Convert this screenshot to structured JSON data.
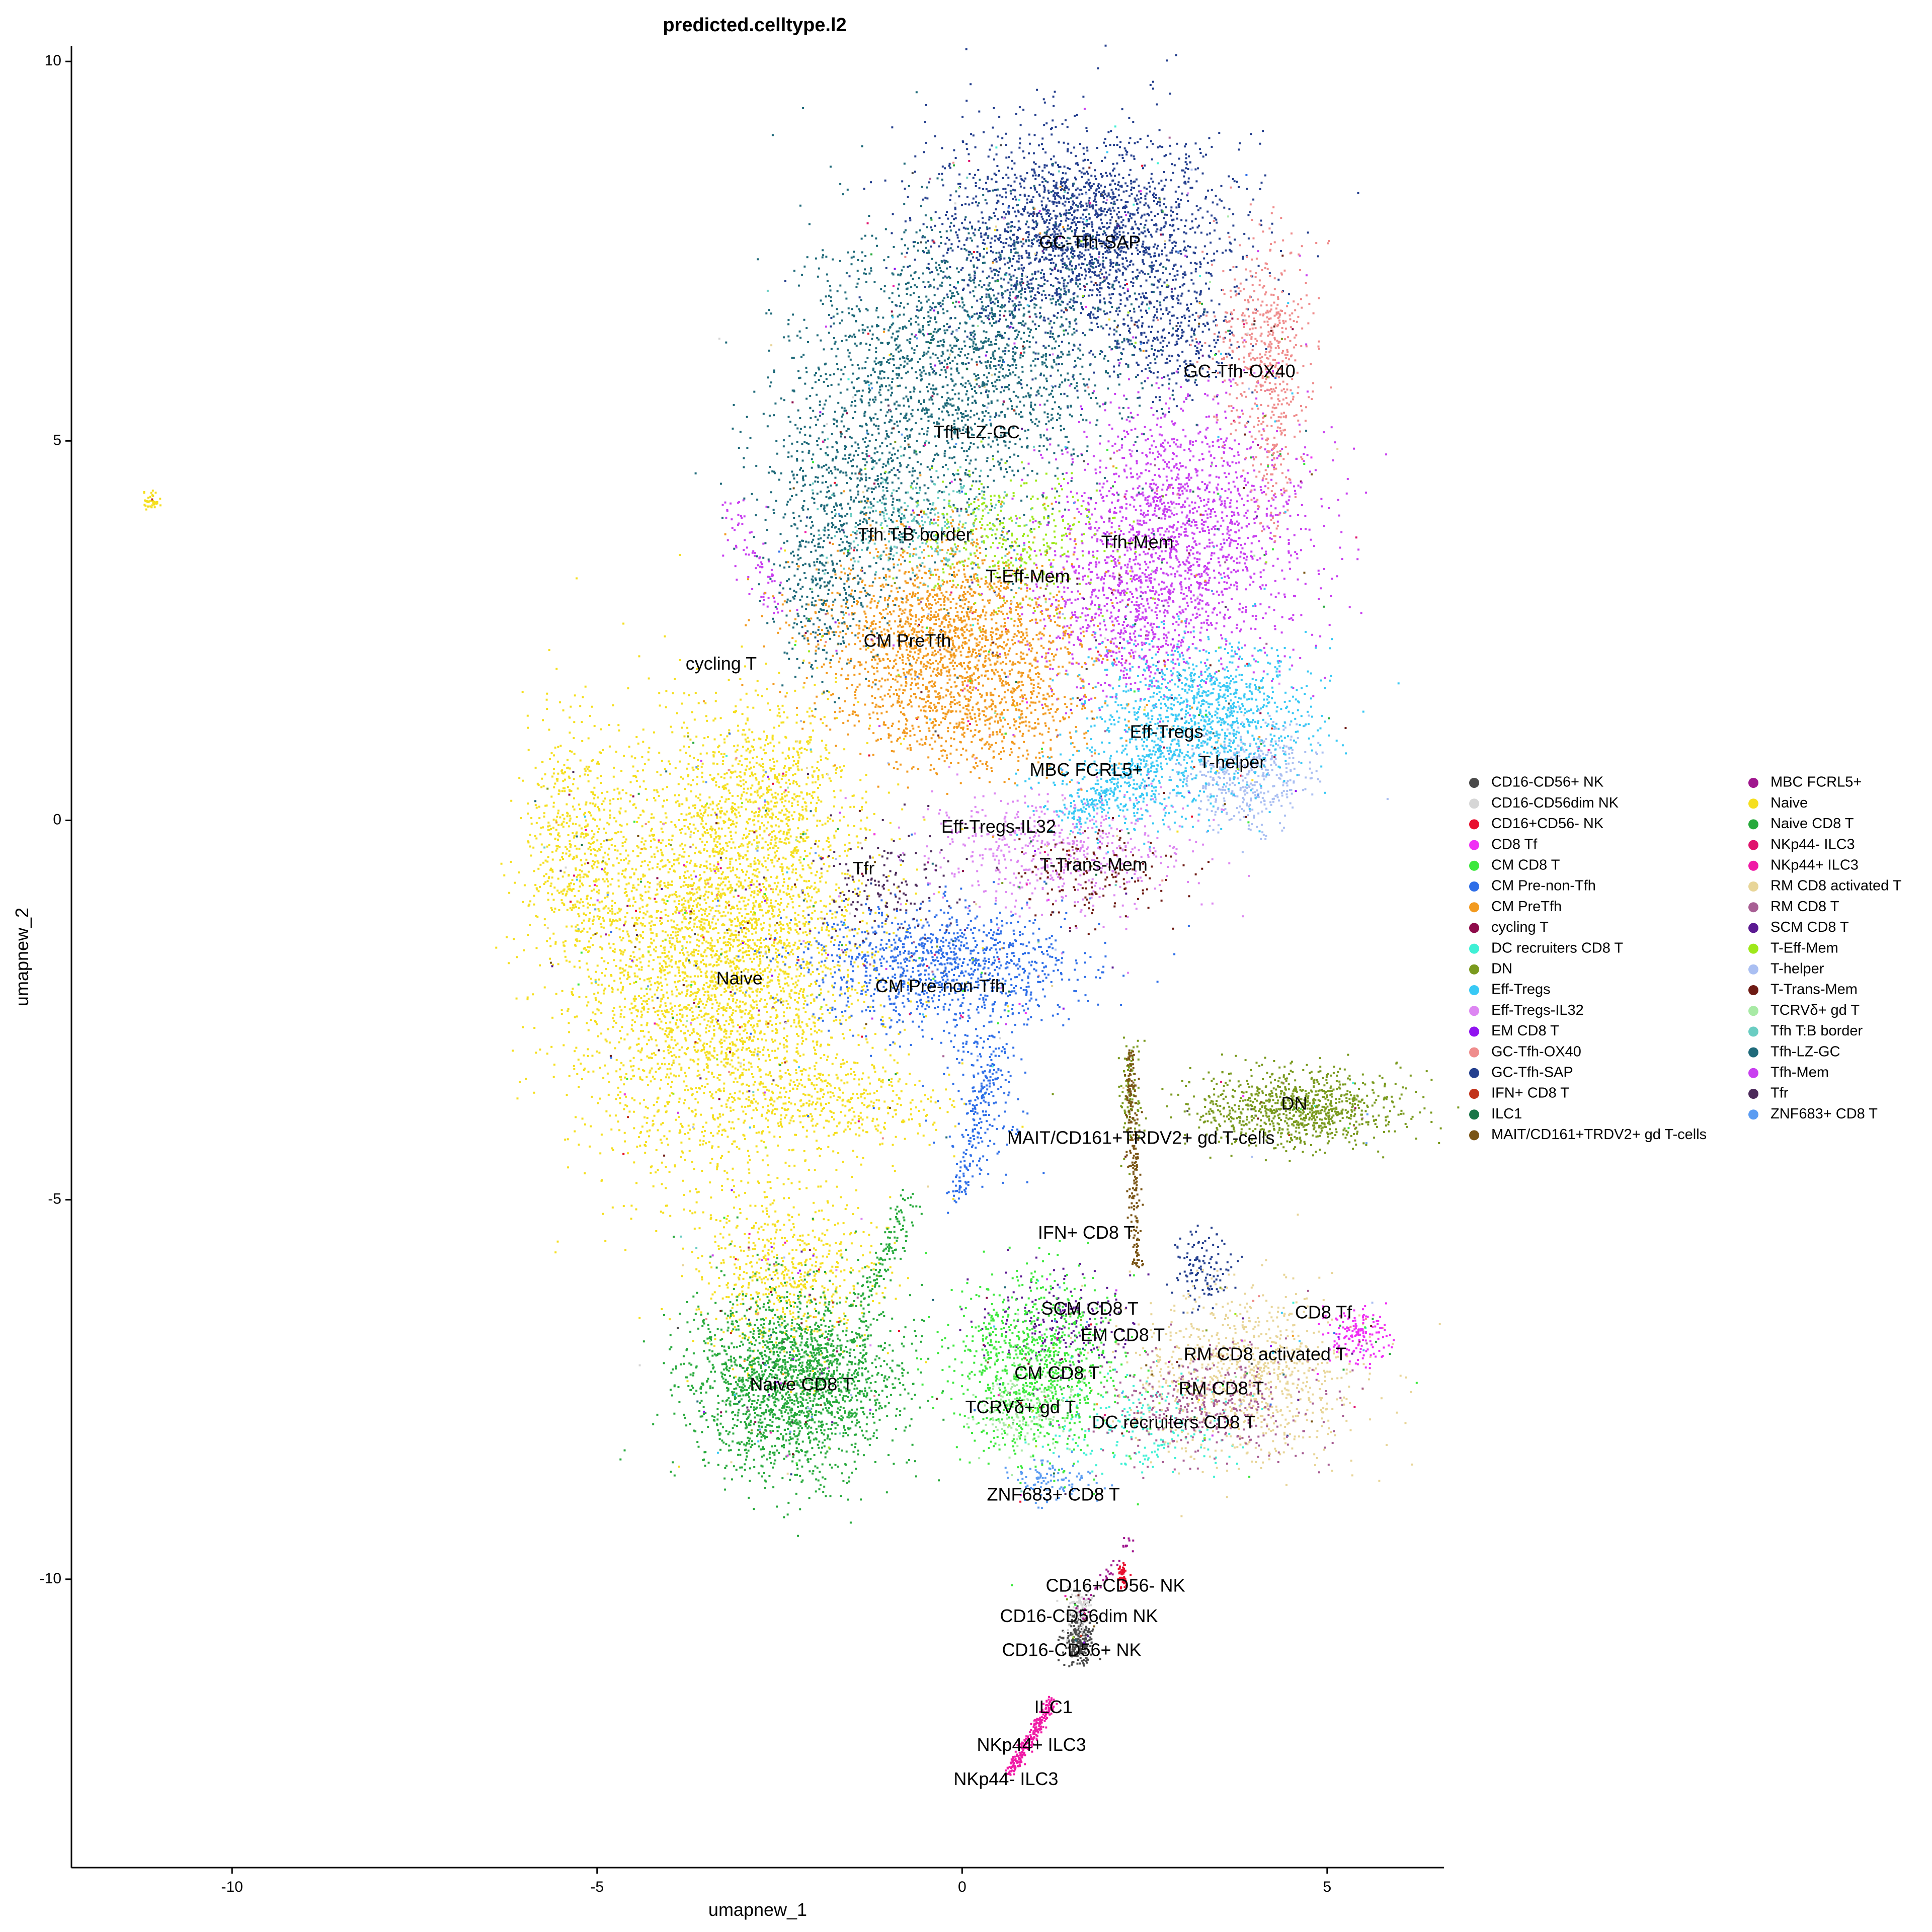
{
  "chart_data": {
    "type": "scatter",
    "title": "predicted.celltype.l2",
    "xlabel": "umapnew_1",
    "ylabel": "umapnew_2",
    "xlim": [
      -12.2,
      6.6
    ],
    "ylim": [
      -13.8,
      10.2
    ],
    "xticks": [
      -10,
      -5,
      0,
      5
    ],
    "yticks": [
      -10,
      -5,
      0,
      5,
      10
    ],
    "xtick_labels": [
      "-10",
      "-5",
      "0",
      "5"
    ],
    "ytick_labels": [
      "-10",
      "-5",
      "0",
      "5",
      "10"
    ],
    "legend": {
      "placement": "right",
      "entries": [
        {
          "label": "CD16-CD56+ NK",
          "color": "#4a4a4a"
        },
        {
          "label": "CD16-CD56dim NK",
          "color": "#d6d6d6"
        },
        {
          "label": "CD16+CD56- NK",
          "color": "#e8102f"
        },
        {
          "label": "CD8 Tf",
          "color": "#f02ef5"
        },
        {
          "label": "CM CD8 T",
          "color": "#3ce83c"
        },
        {
          "label": "CM Pre-non-Tfh",
          "color": "#2f6fe8"
        },
        {
          "label": "CM PreTfh",
          "color": "#f29a1f"
        },
        {
          "label": "cycling T",
          "color": "#8e0b4a"
        },
        {
          "label": "DC recruiters CD8 T",
          "color": "#3ff0d5"
        },
        {
          "label": "DN",
          "color": "#7a9a1e"
        },
        {
          "label": "Eff-Tregs",
          "color": "#38c9f5"
        },
        {
          "label": "Eff-Tregs-IL32",
          "color": "#dd86f2"
        },
        {
          "label": "EM CD8 T",
          "color": "#9013f0"
        },
        {
          "label": "GC-Tfh-OX40",
          "color": "#ef8c8c"
        },
        {
          "label": "GC-Tfh-SAP",
          "color": "#243f8e"
        },
        {
          "label": "IFN+ CD8 T",
          "color": "#c2341c"
        },
        {
          "label": "ILC1",
          "color": "#1b7548"
        },
        {
          "label": "MAIT/CD161+TRDV2+ gd T-cells",
          "color": "#7a5516"
        },
        {
          "label": "MBC FCRL5+",
          "color": "#a0168e"
        },
        {
          "label": "Naive",
          "color": "#f5df1f"
        },
        {
          "label": "Naive CD8 T",
          "color": "#27aa3c"
        },
        {
          "label": "NKp44- ILC3",
          "color": "#e0146e"
        },
        {
          "label": "NKp44+ ILC3",
          "color": "#f01aa6"
        },
        {
          "label": "RM CD8 activated T",
          "color": "#e8d598"
        },
        {
          "label": "RM CD8 T",
          "color": "#a85f94"
        },
        {
          "label": "SCM CD8 T",
          "color": "#5b1a92"
        },
        {
          "label": "T-Eff-Mem",
          "color": "#9ee81a"
        },
        {
          "label": "T-helper",
          "color": "#aabff2"
        },
        {
          "label": "T-Trans-Mem",
          "color": "#6e1b14"
        },
        {
          "label": "TCRVδ+ gd T",
          "color": "#a8eaa5"
        },
        {
          "label": "Tfh T:B border",
          "color": "#6acdc2"
        },
        {
          "label": "Tfh-LZ-GC",
          "color": "#1f6a7a"
        },
        {
          "label": "Tfh-Mem",
          "color": "#c93ff0"
        },
        {
          "label": "Tfr",
          "color": "#4c2a5a"
        },
        {
          "label": "ZNF683+ CD8 T",
          "color": "#5b9cf2"
        }
      ]
    },
    "cluster_labels": [
      {
        "text": "GC-Tfh-SAP",
        "x": 1.75,
        "y": 7.6
      },
      {
        "text": "GC-Tfh-OX40",
        "x": 3.8,
        "y": 5.9
      },
      {
        "text": "Tfh-LZ-GC",
        "x": 0.2,
        "y": 5.1
      },
      {
        "text": "Tfh T:B border",
        "x": -0.65,
        "y": 3.75
      },
      {
        "text": "Tfh-Mem",
        "x": 2.4,
        "y": 3.65
      },
      {
        "text": "T-Eff-Mem",
        "x": 0.9,
        "y": 3.2
      },
      {
        "text": "CM PreTfh",
        "x": -0.75,
        "y": 2.35
      },
      {
        "text": "cycling T",
        "x": -3.3,
        "y": 2.05
      },
      {
        "text": "Eff-Tregs",
        "x": 2.8,
        "y": 1.15
      },
      {
        "text": "T-helper",
        "x": 3.7,
        "y": 0.75
      },
      {
        "text": "MBC FCRL5+",
        "x": 1.7,
        "y": 0.65
      },
      {
        "text": "Eff-Tregs-IL32",
        "x": 0.5,
        "y": -0.1
      },
      {
        "text": "T-Trans-Mem",
        "x": 1.8,
        "y": -0.6
      },
      {
        "text": "Tfr",
        "x": -1.35,
        "y": -0.65
      },
      {
        "text": "Naive",
        "x": -3.05,
        "y": -2.1
      },
      {
        "text": "CM Pre-non-Tfh",
        "x": -0.3,
        "y": -2.2
      },
      {
        "text": "DN",
        "x": 4.55,
        "y": -3.75
      },
      {
        "text": "MAIT/CD161+TRDV2+ gd T-cells",
        "x": 2.45,
        "y": -4.2
      },
      {
        "text": "IFN+ CD8 T",
        "x": 1.7,
        "y": -5.45
      },
      {
        "text": "SCM CD8 T",
        "x": 1.75,
        "y": -6.45
      },
      {
        "text": "CD8 Tf",
        "x": 4.95,
        "y": -6.5
      },
      {
        "text": "EM CD8 T",
        "x": 2.2,
        "y": -6.8
      },
      {
        "text": "RM CD8 activated T",
        "x": 4.15,
        "y": -7.05
      },
      {
        "text": "Naive CD8 T",
        "x": -2.2,
        "y": -7.45
      },
      {
        "text": "CM CD8 T",
        "x": 1.3,
        "y": -7.3
      },
      {
        "text": "RM CD8 T",
        "x": 3.55,
        "y": -7.5
      },
      {
        "text": "TCRVδ+ gd T",
        "x": 0.8,
        "y": -7.75
      },
      {
        "text": "DC recruiters CD8 T",
        "x": 2.9,
        "y": -7.95
      },
      {
        "text": "ZNF683+ CD8 T",
        "x": 1.25,
        "y": -8.9
      },
      {
        "text": "CD16+CD56- NK",
        "x": 2.1,
        "y": -10.1
      },
      {
        "text": "CD16-CD56dim NK",
        "x": 1.6,
        "y": -10.5
      },
      {
        "text": "CD16-CD56+ NK",
        "x": 1.5,
        "y": -10.95
      },
      {
        "text": "ILC1",
        "x": 1.25,
        "y": -11.7
      },
      {
        "text": "NKp44+ ILC3",
        "x": 0.95,
        "y": -12.2
      },
      {
        "text": "NKp44- ILC3",
        "x": 0.6,
        "y": -12.65
      }
    ],
    "clusters": [
      {
        "type": "GC-Tfh-SAP",
        "cx": 1.6,
        "cy": 7.7,
        "sx": 1.0,
        "sy": 0.7,
        "n": 2200
      },
      {
        "type": "Tfh-LZ-GC",
        "cx": 0.0,
        "cy": 6.0,
        "sx": 1.1,
        "sy": 0.95,
        "n": 2000
      },
      {
        "type": "Tfh-LZ-GC",
        "cx": -1.6,
        "cy": 4.3,
        "sx": 0.6,
        "sy": 0.8,
        "n": 600
      },
      {
        "type": "Tfh-LZ-GC",
        "cx": -1.9,
        "cy": 3.0,
        "sx": 0.3,
        "sy": 0.6,
        "n": 250
      },
      {
        "type": "GC-Tfh-OX40",
        "cx": 4.15,
        "cy": 6.3,
        "sx": 0.35,
        "sy": 0.65,
        "n": 450
      },
      {
        "type": "GC-Tfh-OX40",
        "cx": 4.25,
        "cy": 4.8,
        "sx": 0.15,
        "sy": 0.5,
        "n": 120
      },
      {
        "type": "GC-Tfh-SAP",
        "cx": 2.9,
        "cy": 6.4,
        "sx": 0.45,
        "sy": 0.45,
        "n": 300
      },
      {
        "type": "Tfh-Mem",
        "cx": 3.0,
        "cy": 3.8,
        "sx": 0.85,
        "sy": 0.85,
        "n": 1700
      },
      {
        "type": "Tfh-Mem",
        "cx": 2.2,
        "cy": 2.6,
        "sx": 0.65,
        "sy": 0.5,
        "n": 500
      },
      {
        "type": "T-Eff-Mem",
        "cx": 0.7,
        "cy": 3.7,
        "sx": 0.6,
        "sy": 0.45,
        "n": 350
      },
      {
        "type": "Tfh T:B border",
        "cx": -0.6,
        "cy": 3.9,
        "sx": 0.6,
        "sy": 0.4,
        "n": 300
      },
      {
        "type": "CM PreTfh",
        "cx": -0.2,
        "cy": 2.4,
        "sx": 0.9,
        "sy": 0.65,
        "n": 1900
      },
      {
        "type": "CM PreTfh",
        "cx": 0.3,
        "cy": 1.3,
        "sx": 0.8,
        "sy": 0.35,
        "n": 400
      },
      {
        "type": "Eff-Tregs",
        "cx": 3.3,
        "cy": 1.4,
        "sx": 0.7,
        "sy": 0.5,
        "n": 1100
      },
      {
        "type": "Eff-Tregs",
        "cx": 2.2,
        "cy": 0.4,
        "sx": 0.6,
        "sy": 0.3,
        "n": 300
      },
      {
        "type": "T-helper",
        "cx": 3.9,
        "cy": 0.6,
        "sx": 0.45,
        "sy": 0.35,
        "n": 450
      },
      {
        "type": "Eff-Tregs-IL32",
        "cx": 1.3,
        "cy": -0.4,
        "sx": 0.9,
        "sy": 0.4,
        "n": 550
      },
      {
        "type": "T-Trans-Mem",
        "cx": 1.8,
        "cy": -0.7,
        "sx": 0.6,
        "sy": 0.3,
        "n": 150
      },
      {
        "type": "Naive",
        "cx": -3.3,
        "cy": -1.8,
        "sx": 1.0,
        "sy": 1.4,
        "n": 4200
      },
      {
        "type": "Naive",
        "cx": -5.3,
        "cy": -0.3,
        "sx": 0.35,
        "sy": 0.8,
        "n": 500
      },
      {
        "type": "Naive",
        "cx": -2.6,
        "cy": 0.3,
        "sx": 0.5,
        "sy": 0.6,
        "n": 500
      },
      {
        "type": "Naive",
        "cx": -1.6,
        "cy": -3.7,
        "sx": 0.8,
        "sy": 0.25,
        "n": 300
      },
      {
        "type": "CM Pre-non-Tfh",
        "cx": -0.3,
        "cy": -1.9,
        "sx": 0.9,
        "sy": 0.4,
        "n": 1100
      },
      {
        "type": "CM Pre-non-Tfh",
        "cx": 0.3,
        "cy": -3.4,
        "sx": 0.3,
        "sy": 0.6,
        "n": 180
      },
      {
        "type": "Tfr",
        "cx": -1.2,
        "cy": -0.9,
        "sx": 0.5,
        "sy": 0.4,
        "n": 150
      },
      {
        "type": "DN",
        "cx": 4.6,
        "cy": -3.8,
        "sx": 0.7,
        "sy": 0.25,
        "n": 900
      },
      {
        "type": "DN",
        "cx": 2.3,
        "cy": -3.6,
        "sx": 0.08,
        "sy": 0.4,
        "n": 100
      },
      {
        "type": "Naive CD8 T",
        "cx": -2.3,
        "cy": -7.4,
        "sx": 0.7,
        "sy": 0.6,
        "n": 2100
      },
      {
        "type": "Naive",
        "cx": -2.4,
        "cy": -6.0,
        "sx": 0.6,
        "sy": 0.5,
        "n": 600
      },
      {
        "type": "CM CD8 T",
        "cx": 1.0,
        "cy": -7.2,
        "sx": 0.55,
        "sy": 0.6,
        "n": 900
      },
      {
        "type": "SCM CD8 T",
        "cx": 1.3,
        "cy": -6.6,
        "sx": 0.5,
        "sy": 0.3,
        "n": 200
      },
      {
        "type": "RM CD8 activated T",
        "cx": 3.9,
        "cy": -7.3,
        "sx": 0.8,
        "sy": 0.55,
        "n": 900
      },
      {
        "type": "RM CD8 T",
        "cx": 3.4,
        "cy": -7.7,
        "sx": 0.7,
        "sy": 0.35,
        "n": 400
      },
      {
        "type": "CD8 Tf",
        "cx": 5.4,
        "cy": -6.8,
        "sx": 0.2,
        "sy": 0.2,
        "n": 150
      },
      {
        "type": "GC-Tfh-SAP",
        "cx": 3.3,
        "cy": -5.9,
        "sx": 0.2,
        "sy": 0.25,
        "n": 120
      },
      {
        "type": "DC recruiters CD8 T",
        "cx": 2.5,
        "cy": -8.0,
        "sx": 0.6,
        "sy": 0.3,
        "n": 200
      },
      {
        "type": "TCRVδ+ gd T",
        "cx": 0.8,
        "cy": -7.8,
        "sx": 0.35,
        "sy": 0.25,
        "n": 200
      },
      {
        "type": "ZNF683+ CD8 T",
        "cx": 1.2,
        "cy": -8.7,
        "sx": 0.3,
        "sy": 0.15,
        "n": 100
      },
      {
        "type": "CD16-CD56+ NK",
        "cx": 1.6,
        "cy": -10.8,
        "sx": 0.1,
        "sy": 0.2,
        "n": 250
      },
      {
        "type": "CD16-CD56dim NK",
        "cx": 1.6,
        "cy": -10.4,
        "sx": 0.1,
        "sy": 0.15,
        "n": 100
      },
      {
        "type": "CD16+CD56- NK",
        "cx": 2.2,
        "cy": -9.95,
        "sx": 0.03,
        "sy": 0.08,
        "n": 50
      },
      {
        "type": "Naive",
        "cx": -11.1,
        "cy": 4.2,
        "sx": 0.05,
        "sy": 0.06,
        "n": 40
      }
    ],
    "strands": [
      {
        "type": "NKp44+ ILC3",
        "from": [
          0.65,
          -12.55
        ],
        "to": [
          1.25,
          -11.6
        ],
        "n": 250,
        "spread": 0.04
      },
      {
        "type": "MAIT/CD161+TRDV2+ gd T-cells",
        "from": [
          2.3,
          -3.0
        ],
        "to": [
          2.4,
          -5.9
        ],
        "n": 220,
        "spread": 0.04
      },
      {
        "type": "Naive CD8 T",
        "from": [
          -0.7,
          -5.0
        ],
        "to": [
          -1.3,
          -6.3
        ],
        "n": 120,
        "spread": 0.08
      },
      {
        "type": "CM Pre-non-Tfh",
        "from": [
          0.5,
          -3.0
        ],
        "to": [
          -0.1,
          -5.0
        ],
        "n": 150,
        "spread": 0.08
      },
      {
        "type": "Tfh-Mem",
        "from": [
          -3.2,
          4.2
        ],
        "to": [
          -2.5,
          2.8
        ],
        "n": 80,
        "spread": 0.12
      },
      {
        "type": "Eff-Tregs",
        "from": [
          1.5,
          0.0
        ],
        "to": [
          2.8,
          1.0
        ],
        "n": 150,
        "spread": 0.08
      },
      {
        "type": "MBC FCRL5+",
        "from": [
          2.3,
          -9.5
        ],
        "to": [
          1.6,
          -10.5
        ],
        "n": 40,
        "spread": 0.05
      }
    ]
  }
}
